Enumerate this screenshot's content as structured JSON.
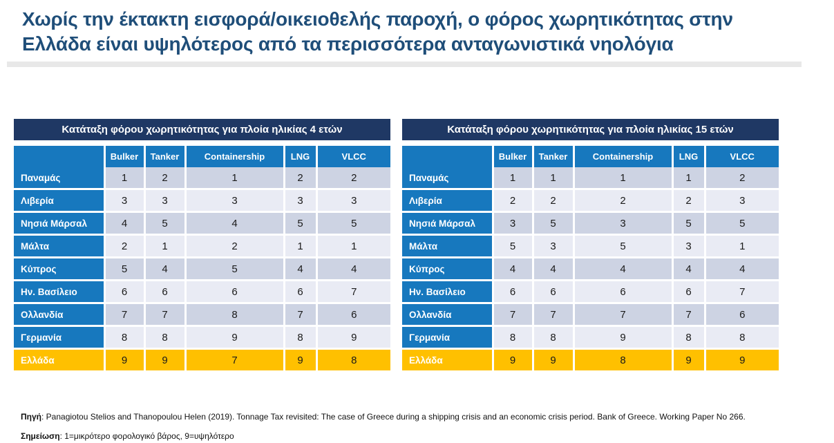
{
  "title_lines": [
    "Χωρίς την έκτακτη εισφορά/οικειοθελής παροχή, ο φόρος χωρητικότητας στην",
    "Ελλάδα είναι υψηλότερος από τα περισσότερα ανταγωνιστικά νηολόγια"
  ],
  "tables": [
    {
      "caption": "Κατάταξη φόρου χωρητικότητας για πλοία ηλικίας 4 ετών",
      "columns": [
        "Bulker",
        "Tanker",
        "Containership",
        "LNG",
        "VLCC"
      ],
      "rows": [
        {
          "label": "Παναμάς",
          "values": [
            1,
            2,
            1,
            2,
            2
          ],
          "highlight": false
        },
        {
          "label": "Λιβερία",
          "values": [
            3,
            3,
            3,
            3,
            3
          ],
          "highlight": false
        },
        {
          "label": "Νησιά Μάρσαλ",
          "values": [
            4,
            5,
            4,
            5,
            5
          ],
          "highlight": false
        },
        {
          "label": "Μάλτα",
          "values": [
            2,
            1,
            2,
            1,
            1
          ],
          "highlight": false
        },
        {
          "label": "Κύπρος",
          "values": [
            5,
            4,
            5,
            4,
            4
          ],
          "highlight": false
        },
        {
          "label": "Ην. Βασίλειο",
          "values": [
            6,
            6,
            6,
            6,
            7
          ],
          "highlight": false
        },
        {
          "label": "Ολλανδία",
          "values": [
            7,
            7,
            8,
            7,
            6
          ],
          "highlight": false
        },
        {
          "label": "Γερμανία",
          "values": [
            8,
            8,
            9,
            8,
            9
          ],
          "highlight": false
        },
        {
          "label": "Ελλάδα",
          "values": [
            9,
            9,
            7,
            9,
            8
          ],
          "highlight": true
        }
      ]
    },
    {
      "caption": "Κατάταξη φόρου χωρητικότητας για πλοία ηλικίας 15 ετών",
      "columns": [
        "Bulker",
        "Tanker",
        "Containership",
        "LNG",
        "VLCC"
      ],
      "rows": [
        {
          "label": "Παναμάς",
          "values": [
            1,
            1,
            1,
            1,
            2
          ],
          "highlight": false
        },
        {
          "label": "Λιβερία",
          "values": [
            2,
            2,
            2,
            2,
            3
          ],
          "highlight": false
        },
        {
          "label": "Νησιά Μάρσαλ",
          "values": [
            3,
            5,
            3,
            5,
            5
          ],
          "highlight": false
        },
        {
          "label": "Μάλτα",
          "values": [
            5,
            3,
            5,
            3,
            1
          ],
          "highlight": false
        },
        {
          "label": "Κύπρος",
          "values": [
            4,
            4,
            4,
            4,
            4
          ],
          "highlight": false
        },
        {
          "label": "Ην. Βασίλειο",
          "values": [
            6,
            6,
            6,
            6,
            7
          ],
          "highlight": false
        },
        {
          "label": "Ολλανδία",
          "values": [
            7,
            7,
            7,
            7,
            6
          ],
          "highlight": false
        },
        {
          "label": "Γερμανία",
          "values": [
            8,
            8,
            9,
            8,
            8
          ],
          "highlight": false
        },
        {
          "label": "Ελλάδα",
          "values": [
            9,
            9,
            8,
            9,
            9
          ],
          "highlight": true
        }
      ]
    }
  ],
  "footer": {
    "source_label": "Πηγή",
    "source_text": ": Panagiotou Stelios and Thanopoulou Helen (2019). Tonnage Tax revisited: The case of Greece during a shipping crisis and an economic crisis period. Bank of Greece. Working Paper No 266.",
    "note_label": "Σημείωση",
    "note_text": ": 1=μικρότερο φορολογικό βάρος, 9=υψηλότερο"
  },
  "colors": {
    "title_text": "#1F4E79",
    "caption_bg": "#1F3864",
    "header_bg": "#1778BE",
    "row_alt_dark": "#CDD3E3",
    "row_alt_light": "#E9EBF4",
    "highlight_bg": "#FFC000",
    "cell_text": "#1A1A1A",
    "divider": "#E8E8E8"
  }
}
